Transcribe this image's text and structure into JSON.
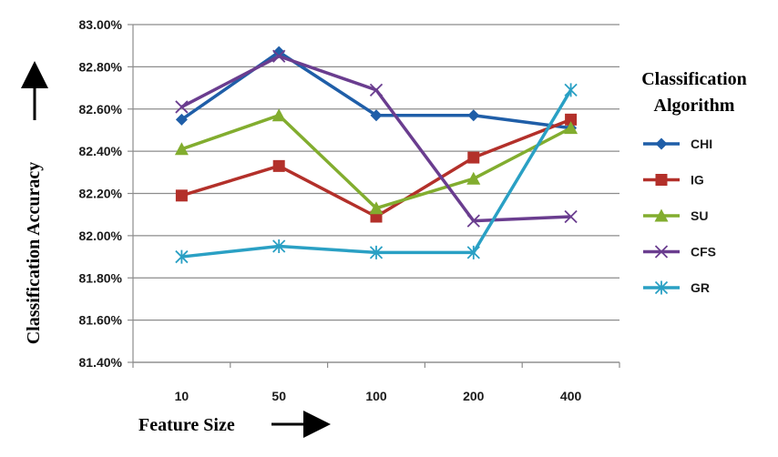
{
  "chart_data": {
    "type": "line",
    "categories": [
      "10",
      "50",
      "100",
      "200",
      "400"
    ],
    "series": [
      {
        "name": "CHI",
        "color": "#1f5ea8",
        "marker": "diamond",
        "values": [
          82.55,
          82.87,
          82.57,
          82.57,
          82.51
        ]
      },
      {
        "name": "IG",
        "color": "#b3302a",
        "marker": "square",
        "values": [
          82.19,
          82.33,
          82.09,
          82.37,
          82.55
        ]
      },
      {
        "name": "SU",
        "color": "#82ad2f",
        "marker": "triangle",
        "values": [
          82.41,
          82.57,
          82.13,
          82.27,
          82.51
        ]
      },
      {
        "name": "CFS",
        "color": "#6a3d8f",
        "marker": "x",
        "values": [
          82.61,
          82.85,
          82.69,
          82.07,
          82.09
        ]
      },
      {
        "name": "GR",
        "color": "#2aa0c4",
        "marker": "star",
        "values": [
          81.9,
          81.95,
          81.92,
          81.92,
          82.69
        ]
      }
    ],
    "ylim": [
      81.4,
      83.0
    ],
    "ytick_labels": [
      "81.40%",
      "81.60%",
      "81.80%",
      "82.00%",
      "82.20%",
      "82.40%",
      "82.60%",
      "82.80%",
      "83.00%"
    ],
    "xlabel": "Feature Size",
    "ylabel": "Classification Accuracy",
    "legend_title_line1": "Classification",
    "legend_title_line2": "Algorithm",
    "grid": true
  }
}
